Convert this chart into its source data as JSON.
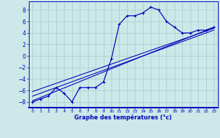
{
  "xlabel": "Graphe des températures (°c)",
  "bg_color": "#cce8e8",
  "grid_color": "#aacece",
  "line_color": "#0000bb",
  "xlim": [
    -0.5,
    23.5
  ],
  "ylim": [
    -9.0,
    9.5
  ],
  "xticks": [
    0,
    1,
    2,
    3,
    4,
    5,
    6,
    7,
    8,
    9,
    10,
    11,
    12,
    13,
    14,
    15,
    16,
    17,
    18,
    19,
    20,
    21,
    22,
    23
  ],
  "yticks": [
    -8,
    -6,
    -4,
    -2,
    0,
    2,
    4,
    6,
    8
  ],
  "curve1_x": [
    0,
    1,
    2,
    3,
    4,
    5,
    6,
    7,
    8,
    9,
    10,
    11,
    12,
    13,
    14,
    15,
    16,
    17,
    18,
    19,
    20,
    21,
    22,
    23
  ],
  "curve1_y": [
    -8.0,
    -7.5,
    -7.0,
    -5.5,
    -6.5,
    -8.0,
    -5.5,
    -5.5,
    -5.5,
    -4.5,
    -0.5,
    5.5,
    7.0,
    7.0,
    7.5,
    8.5,
    8.0,
    6.0,
    5.0,
    4.0,
    4.0,
    4.5,
    4.5,
    5.0
  ],
  "line2_x": [
    0,
    23
  ],
  "line2_y": [
    -7.8,
    5.0
  ],
  "line3_x": [
    0,
    23
  ],
  "line3_y": [
    -7.0,
    4.5
  ],
  "line4_x": [
    0,
    23
  ],
  "line4_y": [
    -6.2,
    4.8
  ]
}
